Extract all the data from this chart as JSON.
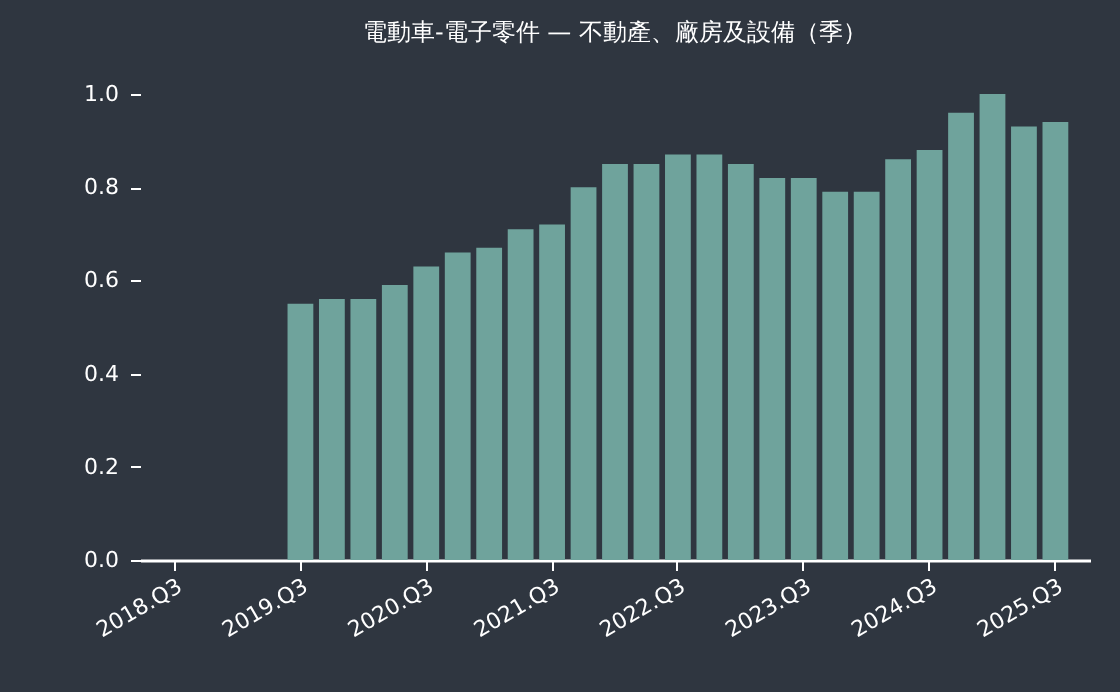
{
  "chart_data": {
    "type": "bar",
    "title": "電動車-電子零件 — 不動產、廠房及設備（季）",
    "categories": [
      "2018.Q3",
      null,
      null,
      null,
      "2019.Q3",
      null,
      null,
      null,
      "2020.Q3",
      null,
      null,
      null,
      "2021.Q3",
      null,
      null,
      null,
      "2022.Q3",
      null,
      null,
      null,
      "2023.Q3",
      null,
      null,
      null,
      "2024.Q3",
      null,
      null,
      null,
      "2025.Q3"
    ],
    "values": [
      null,
      null,
      null,
      null,
      0.55,
      0.56,
      0.56,
      0.59,
      0.63,
      0.66,
      0.67,
      0.71,
      0.72,
      0.8,
      0.85,
      0.85,
      0.87,
      0.87,
      0.85,
      0.82,
      0.82,
      0.79,
      0.79,
      0.86,
      0.88,
      0.96,
      1.0,
      0.93,
      0.94
    ],
    "color": "#6fa39c",
    "ylim": [
      0,
      1
    ],
    "yticks": [
      {
        "value": 0,
        "label": "0.0"
      },
      {
        "value": 0.2,
        "label": "0.2"
      },
      {
        "value": 0.4,
        "label": "0.4"
      },
      {
        "value": 0.6,
        "label": "0.6"
      },
      {
        "value": 0.8,
        "label": "0.8"
      },
      {
        "value": 1,
        "label": "1.0"
      }
    ],
    "grid": false
  }
}
